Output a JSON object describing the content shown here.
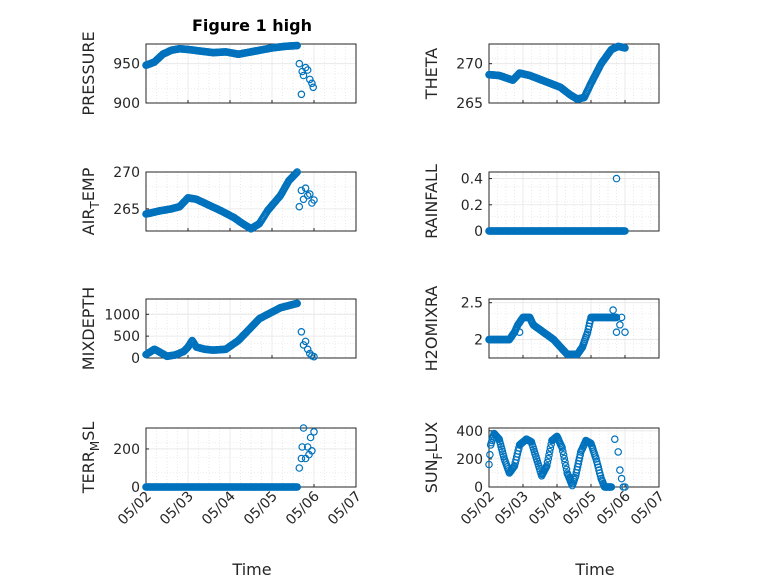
{
  "title": "Figure 1 high",
  "xlabel": "Time",
  "marker_color": "#0072BD",
  "chart_data": [
    {
      "type": "scatter",
      "ylabel": "PRESSURE",
      "ylim": [
        900,
        975
      ],
      "yticks": [
        900,
        950
      ],
      "xticks": [
        "05/02",
        "05/03",
        "05/04",
        "05/05",
        "05/06",
        "05/07"
      ],
      "x_day_range": [
        2,
        7
      ],
      "grid": true,
      "curve": [
        [
          2.0,
          948
        ],
        [
          2.2,
          952
        ],
        [
          2.4,
          962
        ],
        [
          2.6,
          967
        ],
        [
          2.8,
          969
        ],
        [
          3.0,
          968
        ],
        [
          3.3,
          966
        ],
        [
          3.6,
          964
        ],
        [
          3.9,
          965
        ],
        [
          4.2,
          962
        ],
        [
          4.4,
          964
        ],
        [
          4.7,
          967
        ],
        [
          5.0,
          970
        ],
        [
          5.3,
          972
        ],
        [
          5.6,
          973
        ]
      ],
      "scatter": [
        [
          5.65,
          950
        ],
        [
          5.7,
          911
        ],
        [
          5.72,
          940
        ],
        [
          5.75,
          935
        ],
        [
          5.8,
          945
        ],
        [
          5.85,
          942
        ],
        [
          5.9,
          930
        ],
        [
          5.95,
          925
        ],
        [
          5.98,
          920
        ]
      ]
    },
    {
      "type": "scatter",
      "ylabel": "THETA",
      "ylim": [
        265,
        272.5
      ],
      "yticks": [
        265,
        270
      ],
      "xticks": [
        "05/02",
        "05/03",
        "05/04",
        "05/05",
        "05/06",
        "05/07"
      ],
      "x_day_range": [
        2,
        7
      ],
      "grid": true,
      "curve": [
        [
          2.0,
          268.6
        ],
        [
          2.3,
          268.5
        ],
        [
          2.5,
          268.2
        ],
        [
          2.7,
          267.9
        ],
        [
          2.9,
          268.8
        ],
        [
          3.2,
          268.5
        ],
        [
          3.5,
          268.0
        ],
        [
          3.8,
          267.5
        ],
        [
          4.1,
          267.0
        ],
        [
          4.4,
          266.0
        ],
        [
          4.6,
          265.5
        ],
        [
          4.8,
          265.7
        ],
        [
          5.0,
          267.5
        ],
        [
          5.3,
          270.0
        ],
        [
          5.6,
          271.8
        ],
        [
          5.8,
          272.2
        ],
        [
          6.0,
          272.0
        ]
      ],
      "scatter": []
    },
    {
      "type": "scatter",
      "ylabel": "AIR_TEMP",
      "ylim": [
        262,
        270
      ],
      "yticks": [
        265,
        270
      ],
      "xticks": [
        "05/02",
        "05/03",
        "05/04",
        "05/05",
        "05/06",
        "05/07"
      ],
      "x_day_range": [
        2,
        7
      ],
      "grid": true,
      "curve": [
        [
          2.0,
          264.3
        ],
        [
          2.3,
          264.7
        ],
        [
          2.6,
          265.0
        ],
        [
          2.8,
          265.3
        ],
        [
          3.0,
          266.5
        ],
        [
          3.2,
          266.3
        ],
        [
          3.5,
          265.5
        ],
        [
          3.8,
          264.7
        ],
        [
          4.1,
          263.8
        ],
        [
          4.3,
          263.0
        ],
        [
          4.5,
          262.3
        ],
        [
          4.7,
          263.0
        ],
        [
          4.9,
          264.8
        ],
        [
          5.2,
          266.8
        ],
        [
          5.4,
          268.8
        ],
        [
          5.6,
          270.0
        ]
      ],
      "scatter": [
        [
          5.65,
          265.3
        ],
        [
          5.7,
          267.5
        ],
        [
          5.75,
          266.3
        ],
        [
          5.8,
          267.8
        ],
        [
          5.85,
          266.8
        ],
        [
          5.9,
          267.0
        ],
        [
          5.95,
          265.8
        ],
        [
          6.0,
          266.2
        ]
      ]
    },
    {
      "type": "scatter",
      "ylabel": "RAINFALL",
      "ylim": [
        0,
        0.45
      ],
      "yticks": [
        0,
        0.2,
        0.4
      ],
      "xticks": [
        "05/02",
        "05/03",
        "05/04",
        "05/05",
        "05/06",
        "05/07"
      ],
      "x_day_range": [
        2,
        7
      ],
      "grid": true,
      "curve": [
        [
          2.0,
          0
        ],
        [
          6.0,
          0
        ]
      ],
      "scatter": [
        [
          5.75,
          0.4
        ]
      ]
    },
    {
      "type": "scatter",
      "ylabel": "MIXDEPTH",
      "ylim": [
        0,
        1350
      ],
      "yticks": [
        0,
        500,
        1000
      ],
      "xticks": [
        "05/02",
        "05/03",
        "05/04",
        "05/05",
        "05/06",
        "05/07"
      ],
      "x_day_range": [
        2,
        7
      ],
      "grid": true,
      "curve": [
        [
          2.0,
          80
        ],
        [
          2.2,
          200
        ],
        [
          2.3,
          150
        ],
        [
          2.5,
          40
        ],
        [
          2.7,
          70
        ],
        [
          2.9,
          150
        ],
        [
          3.0,
          250
        ],
        [
          3.1,
          400
        ],
        [
          3.2,
          250
        ],
        [
          3.4,
          200
        ],
        [
          3.6,
          180
        ],
        [
          3.9,
          200
        ],
        [
          4.2,
          400
        ],
        [
          4.5,
          700
        ],
        [
          4.7,
          900
        ],
        [
          5.0,
          1050
        ],
        [
          5.2,
          1150
        ],
        [
          5.4,
          1200
        ],
        [
          5.6,
          1250
        ]
      ],
      "scatter": [
        [
          5.7,
          600
        ],
        [
          5.75,
          300
        ],
        [
          5.8,
          380
        ],
        [
          5.85,
          200
        ],
        [
          5.9,
          100
        ],
        [
          5.95,
          50
        ],
        [
          6.0,
          30
        ]
      ]
    },
    {
      "type": "scatter",
      "ylabel": "H2OMIXRA",
      "ylim": [
        1.75,
        2.55
      ],
      "yticks": [
        2,
        2.5
      ],
      "xticks": [
        "05/02",
        "05/03",
        "05/04",
        "05/05",
        "05/06",
        "05/07"
      ],
      "x_day_range": [
        2,
        7
      ],
      "grid": true,
      "curve": [
        [
          2.0,
          2.0
        ],
        [
          2.6,
          2.0
        ],
        [
          2.75,
          2.1
        ],
        [
          2.85,
          2.2
        ],
        [
          3.0,
          2.3
        ],
        [
          3.2,
          2.3
        ],
        [
          3.3,
          2.2
        ],
        [
          3.6,
          2.1
        ],
        [
          3.9,
          2.0
        ],
        [
          4.1,
          1.9
        ],
        [
          4.3,
          1.8
        ],
        [
          4.6,
          1.8
        ],
        [
          4.75,
          1.9
        ],
        [
          4.9,
          2.1
        ],
        [
          5.0,
          2.3
        ],
        [
          5.6,
          2.3
        ],
        [
          5.75,
          2.3
        ]
      ],
      "scatter": [
        [
          2.9,
          2.1
        ],
        [
          3.05,
          2.3
        ],
        [
          3.15,
          2.3
        ],
        [
          5.65,
          2.4
        ],
        [
          5.75,
          2.1
        ],
        [
          5.85,
          2.2
        ],
        [
          5.9,
          2.3
        ],
        [
          6.0,
          2.1
        ]
      ]
    },
    {
      "type": "scatter",
      "ylabel": "TERR_MSL",
      "ylim": [
        0,
        310
      ],
      "yticks": [
        0,
        200
      ],
      "xticks": [
        "05/02",
        "05/03",
        "05/04",
        "05/05",
        "05/06",
        "05/07"
      ],
      "x_day_range": [
        2,
        7
      ],
      "grid": true,
      "curve": [
        [
          2.0,
          0
        ],
        [
          5.6,
          0
        ]
      ],
      "scatter": [
        [
          5.65,
          100
        ],
        [
          5.7,
          150
        ],
        [
          5.72,
          210
        ],
        [
          5.75,
          310
        ],
        [
          5.8,
          150
        ],
        [
          5.85,
          210
        ],
        [
          5.88,
          170
        ],
        [
          5.92,
          260
        ],
        [
          5.95,
          190
        ],
        [
          6.0,
          290
        ]
      ]
    },
    {
      "type": "scatter",
      "ylabel": "SUN_FLUX",
      "ylim": [
        0,
        420
      ],
      "yticks": [
        0,
        200,
        400
      ],
      "xticks": [
        "05/02",
        "05/03",
        "05/04",
        "05/05",
        "05/06",
        "05/07"
      ],
      "x_day_range": [
        2,
        7
      ],
      "grid": true,
      "curve": [
        [
          2.0,
          160
        ],
        [
          2.05,
          300
        ],
        [
          2.15,
          380
        ],
        [
          2.3,
          340
        ],
        [
          2.45,
          200
        ],
        [
          2.6,
          100
        ],
        [
          2.75,
          150
        ],
        [
          2.9,
          300
        ],
        [
          3.1,
          340
        ],
        [
          3.25,
          320
        ],
        [
          3.4,
          200
        ],
        [
          3.55,
          80
        ],
        [
          3.7,
          150
        ],
        [
          3.85,
          330
        ],
        [
          4.0,
          360
        ],
        [
          4.15,
          280
        ],
        [
          4.3,
          100
        ],
        [
          4.45,
          10
        ],
        [
          4.55,
          80
        ],
        [
          4.7,
          250
        ],
        [
          4.85,
          330
        ],
        [
          5.0,
          310
        ],
        [
          5.15,
          200
        ],
        [
          5.3,
          60
        ],
        [
          5.4,
          0
        ],
        [
          5.6,
          0
        ]
      ],
      "scatter": [
        [
          5.7,
          340
        ],
        [
          5.8,
          250
        ],
        [
          5.85,
          120
        ],
        [
          5.9,
          60
        ],
        [
          5.95,
          0
        ],
        [
          6.0,
          0
        ]
      ]
    }
  ]
}
